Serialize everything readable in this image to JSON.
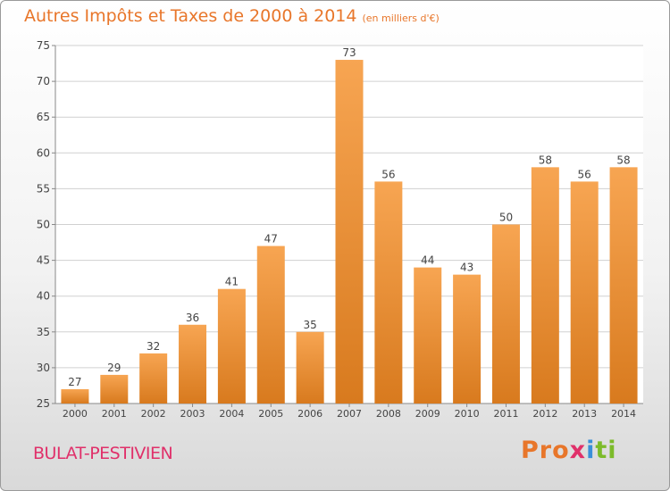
{
  "header": {
    "title": "Autres Impôts et Taxes de 2000 à 2014",
    "subtitle": "(en milliers d'€)"
  },
  "footer": {
    "commune": "BULAT-PESTIVIEN",
    "logo_text": "Proxiti"
  },
  "colors": {
    "bar_top": "#f7a552",
    "bar_bottom": "#d87a1e",
    "title": "#e8762a",
    "commune": "#e0306a"
  },
  "chart_data": {
    "type": "bar",
    "title": "Autres Impôts et Taxes de 2000 à 2014",
    "subtitle": "(en milliers d'€)",
    "categories": [
      "2000",
      "2001",
      "2002",
      "2003",
      "2004",
      "2005",
      "2006",
      "2007",
      "2008",
      "2009",
      "2010",
      "2011",
      "2012",
      "2013",
      "2014"
    ],
    "values": [
      27,
      29,
      32,
      36,
      41,
      47,
      35,
      73,
      56,
      44,
      43,
      50,
      58,
      56,
      58
    ],
    "ylim": [
      25,
      75
    ],
    "yticks": [
      25,
      30,
      35,
      40,
      45,
      50,
      55,
      60,
      65,
      70,
      75
    ],
    "grid": true,
    "data_labels": true
  }
}
